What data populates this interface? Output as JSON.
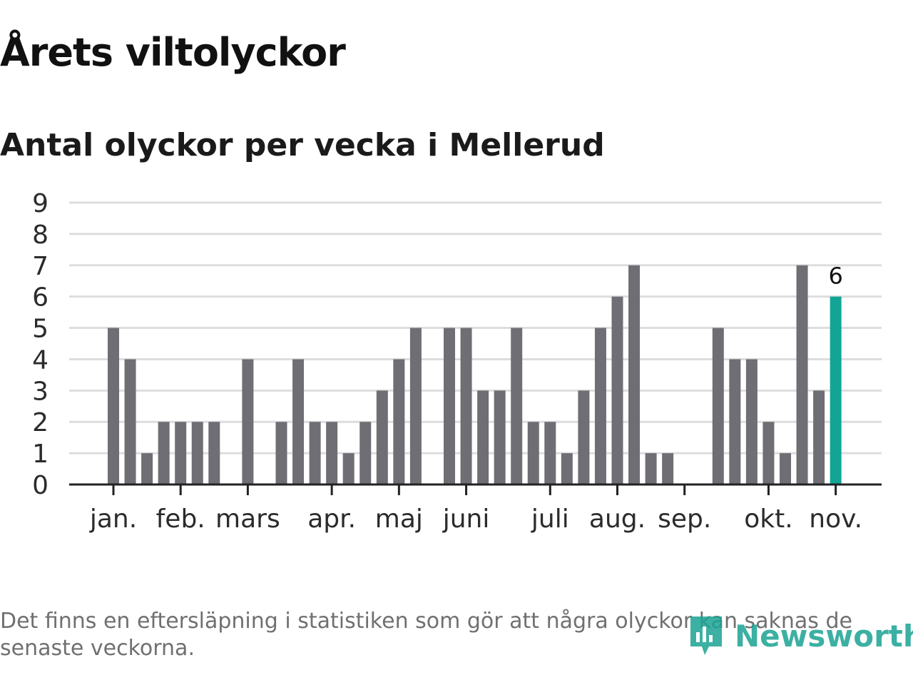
{
  "title": "Årets viltolyckor",
  "subtitle": "Antal olyckor per vecka i Mellerud",
  "footnote": "Det finns en eftersläpning i statistiken som gör att några olyckor kan saknas de senaste veckorna.",
  "brand": "Newsworthy",
  "colors": {
    "bar": "#6f6e74",
    "highlight": "#12a596",
    "grid": "#dddddd",
    "axis": "#222222",
    "text": "#2b2b2b"
  },
  "chart_data": {
    "type": "bar",
    "title": "Antal olyckor per vecka i Mellerud",
    "xlabel": "",
    "ylabel": "",
    "ylim": [
      0,
      9
    ],
    "yticks": [
      0,
      1,
      2,
      3,
      4,
      5,
      6,
      7,
      8,
      9
    ],
    "weeks": [
      1,
      2,
      3,
      4,
      5,
      6,
      7,
      8,
      9,
      10,
      11,
      12,
      13,
      14,
      15,
      16,
      17,
      18,
      19,
      20,
      21,
      22,
      23,
      24,
      25,
      26,
      27,
      28,
      29,
      30,
      31,
      32,
      33,
      34,
      35,
      36,
      37,
      38,
      39,
      40,
      41,
      42,
      43,
      44
    ],
    "values": [
      5,
      4,
      1,
      2,
      2,
      2,
      2,
      0,
      4,
      0,
      2,
      4,
      2,
      2,
      1,
      2,
      3,
      4,
      5,
      0,
      5,
      5,
      3,
      3,
      5,
      2,
      2,
      1,
      3,
      5,
      6,
      7,
      1,
      1,
      0,
      0,
      5,
      4,
      4,
      2,
      1,
      7,
      3,
      6
    ],
    "highlight": {
      "index": 43,
      "label": "6"
    },
    "months": [
      {
        "label": "jan.",
        "week": 1
      },
      {
        "label": "feb.",
        "week": 5
      },
      {
        "label": "mars",
        "week": 9
      },
      {
        "label": "apr.",
        "week": 14
      },
      {
        "label": "maj",
        "week": 18
      },
      {
        "label": "juni",
        "week": 22
      },
      {
        "label": "juli",
        "week": 27
      },
      {
        "label": "aug.",
        "week": 31
      },
      {
        "label": "sep.",
        "week": 35
      },
      {
        "label": "okt.",
        "week": 40
      },
      {
        "label": "nov.",
        "week": 44
      }
    ]
  }
}
